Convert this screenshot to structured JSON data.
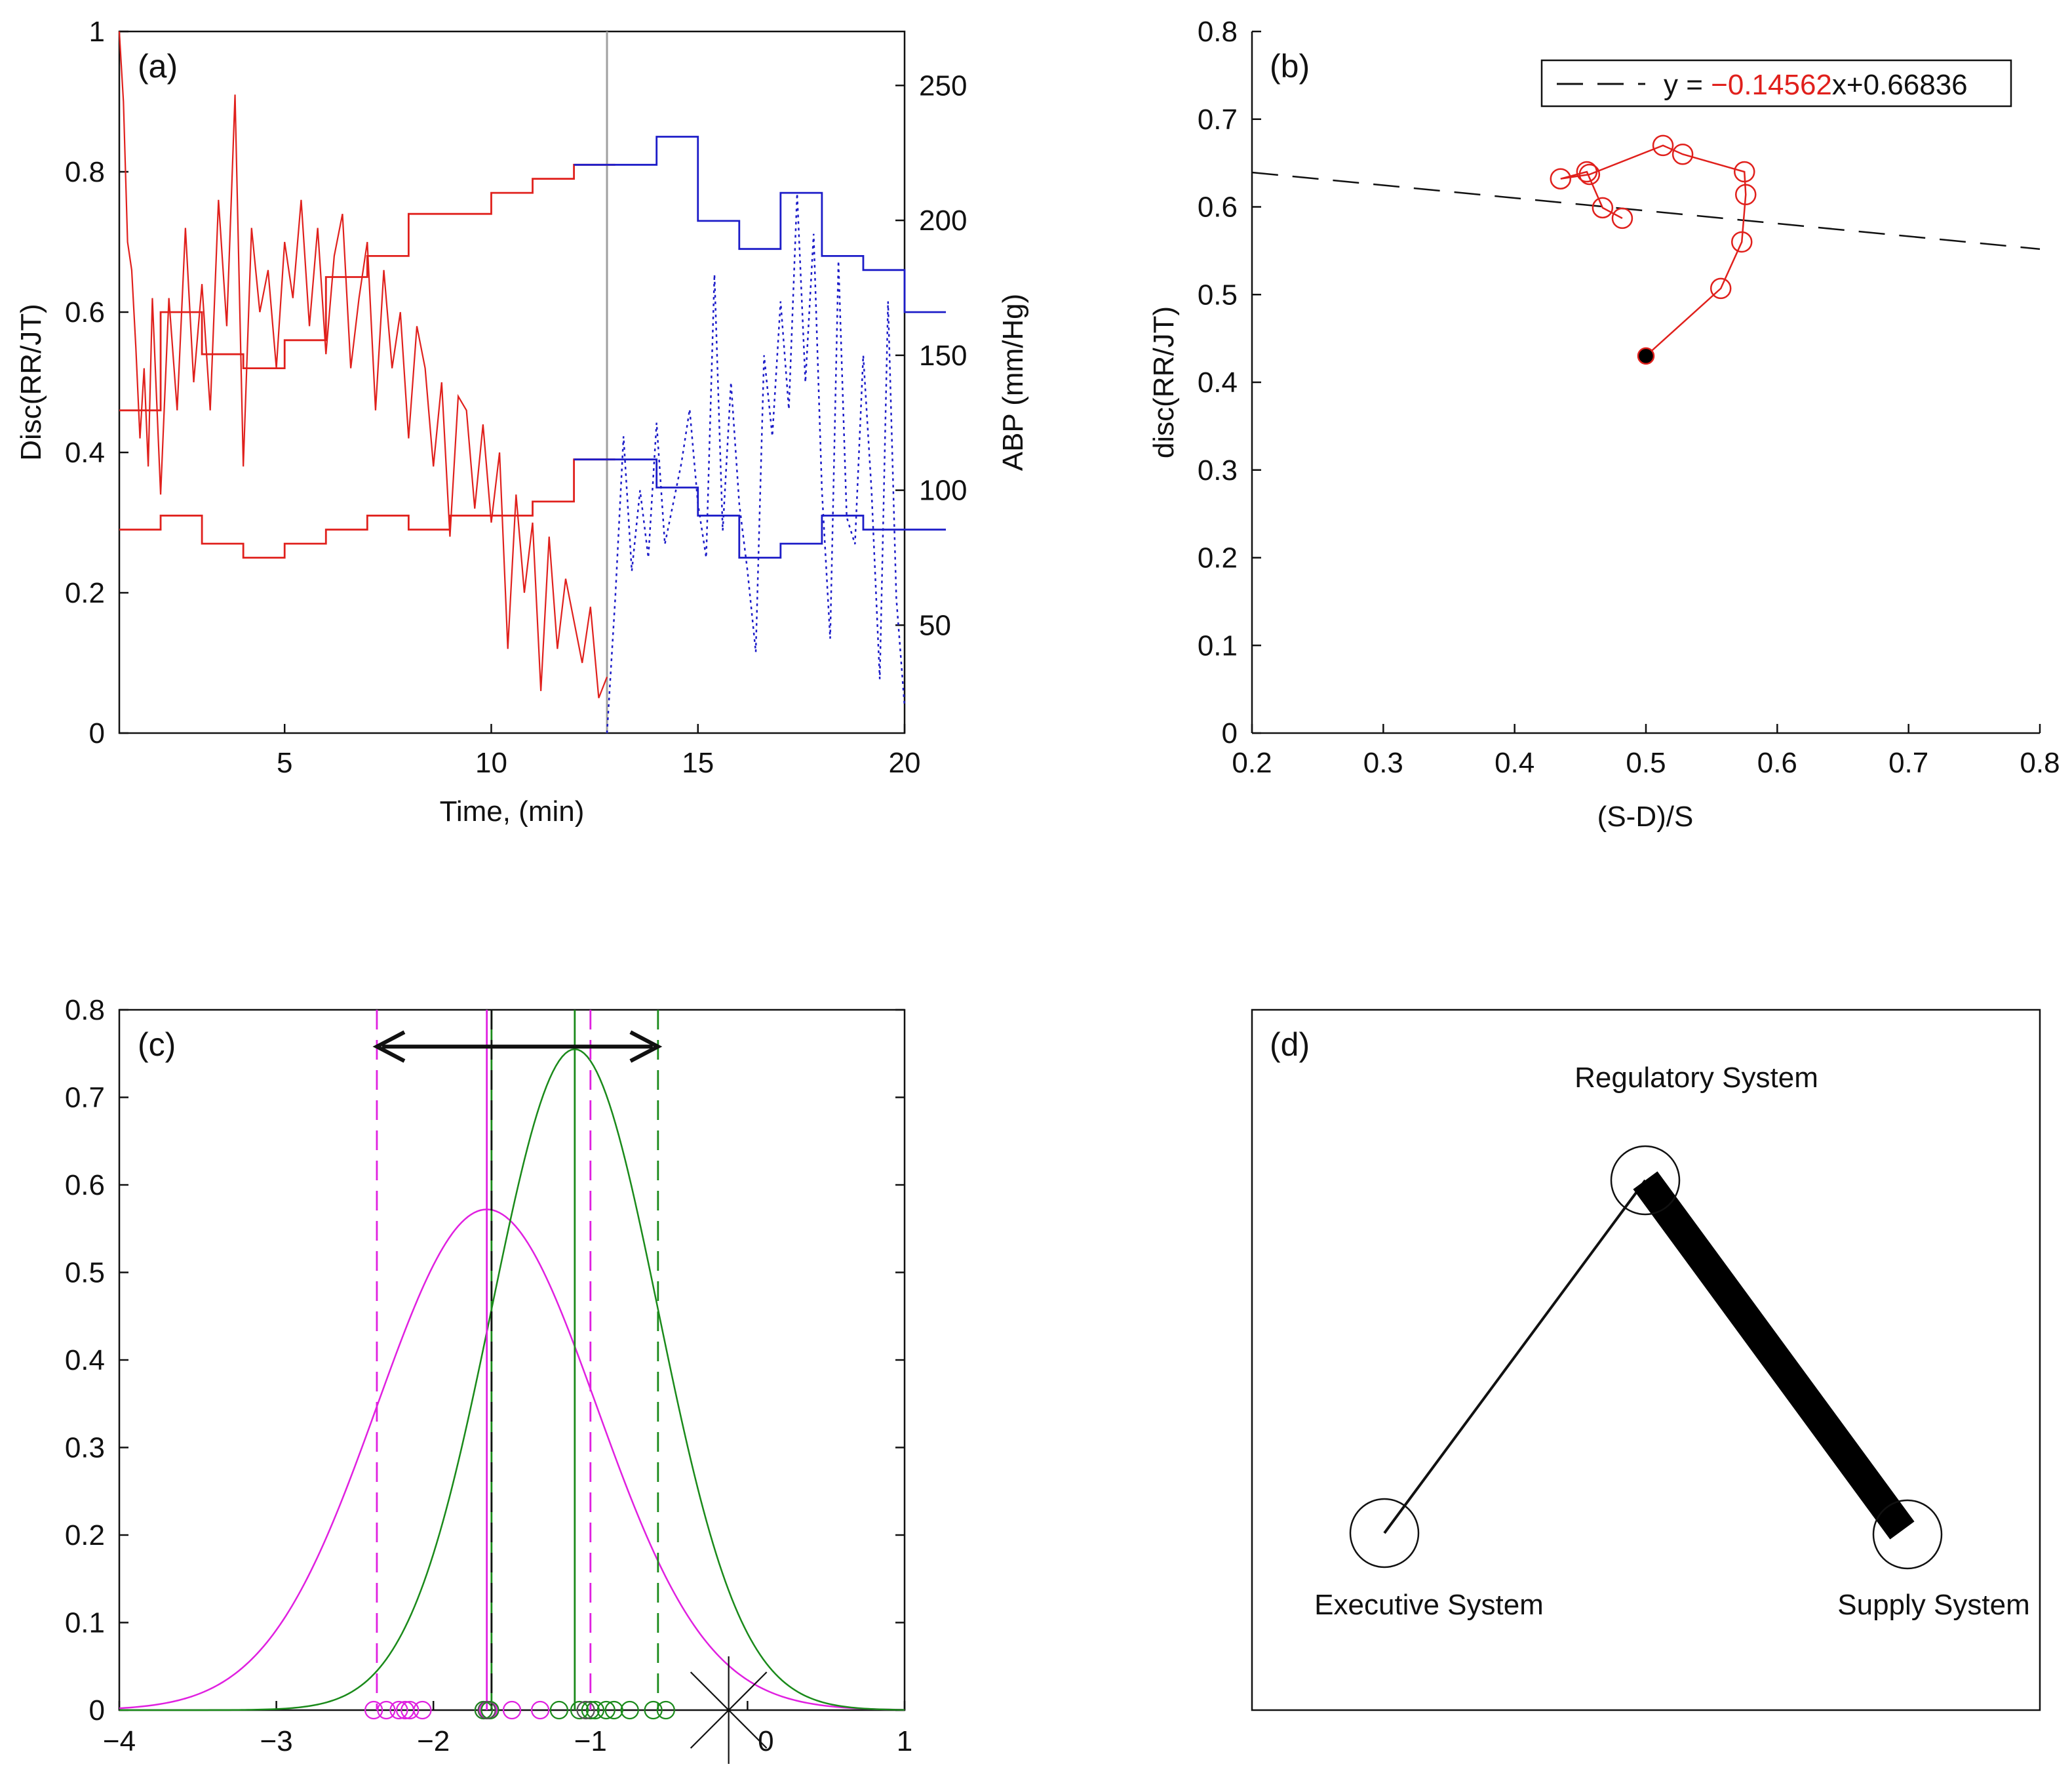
{
  "figure": {
    "description_free": true
  },
  "chart_data": [
    {
      "id": "a",
      "type": "line",
      "panel_label": "(a)",
      "xlabel": "Time, (min)",
      "ylabel": "Disc(RR/JT)",
      "ylabel_right": "ABP (mm/Hg)",
      "xlim": [
        1,
        20
      ],
      "ylim": [
        0,
        1
      ],
      "ylim_right": [
        10,
        270
      ],
      "xticks": [
        5,
        10,
        15,
        20
      ],
      "yticks": [
        0,
        0.2,
        0.4,
        0.6,
        0.8,
        1
      ],
      "yticks_right": [
        50,
        100,
        150,
        200,
        250
      ],
      "marker_line_x": 12.8,
      "colors": {
        "red": "#e0201c",
        "blue": "#1c1cc8",
        "vline": "#a0a0a0"
      },
      "series": [
        {
          "name": "RR/JT discordance (red, thin)",
          "axis": "left",
          "x": [
            1.0,
            1.1,
            1.2,
            1.3,
            1.4,
            1.5,
            1.6,
            1.7,
            1.8,
            1.9,
            2.0,
            2.2,
            2.4,
            2.6,
            2.8,
            3.0,
            3.2,
            3.4,
            3.6,
            3.8,
            4.0,
            4.2,
            4.4,
            4.6,
            4.8,
            5.0,
            5.2,
            5.4,
            5.6,
            5.8,
            6.0,
            6.2,
            6.4,
            6.6,
            6.8,
            7.0,
            7.2,
            7.4,
            7.6,
            7.8,
            8.0,
            8.2,
            8.4,
            8.6,
            8.8,
            9.0,
            9.2,
            9.4,
            9.6,
            9.8,
            10.0,
            10.2,
            10.4,
            10.6,
            10.8,
            11.0,
            11.2,
            11.4,
            11.6,
            11.8,
            12.0,
            12.2,
            12.4,
            12.6,
            12.8
          ],
          "values": [
            1.0,
            0.9,
            0.7,
            0.66,
            0.55,
            0.42,
            0.52,
            0.38,
            0.62,
            0.48,
            0.34,
            0.62,
            0.46,
            0.72,
            0.5,
            0.64,
            0.46,
            0.76,
            0.58,
            0.91,
            0.38,
            0.72,
            0.6,
            0.66,
            0.52,
            0.7,
            0.62,
            0.76,
            0.58,
            0.72,
            0.54,
            0.68,
            0.74,
            0.52,
            0.62,
            0.7,
            0.46,
            0.66,
            0.52,
            0.6,
            0.42,
            0.58,
            0.52,
            0.38,
            0.5,
            0.28,
            0.48,
            0.46,
            0.32,
            0.44,
            0.3,
            0.4,
            0.12,
            0.34,
            0.2,
            0.3,
            0.06,
            0.28,
            0.12,
            0.22,
            0.16,
            0.1,
            0.18,
            0.05,
            0.08
          ]
        },
        {
          "name": "ABP (blue, dotted)",
          "axis": "right",
          "x": [
            12.8,
            13.0,
            13.2,
            13.4,
            13.6,
            13.8,
            14.0,
            14.2,
            14.4,
            14.6,
            14.8,
            15.0,
            15.2,
            15.4,
            15.6,
            15.8,
            16.0,
            16.2,
            16.4,
            16.6,
            16.8,
            17.0,
            17.2,
            17.4,
            17.6,
            17.8,
            18.0,
            18.2,
            18.4,
            18.6,
            18.8,
            19.0,
            19.2,
            19.4,
            19.6,
            19.8,
            20.0
          ],
          "values": [
            10,
            60,
            120,
            70,
            100,
            75,
            125,
            80,
            95,
            110,
            130,
            95,
            75,
            180,
            85,
            140,
            95,
            70,
            40,
            150,
            120,
            170,
            130,
            210,
            140,
            195,
            100,
            45,
            185,
            90,
            80,
            150,
            100,
            30,
            170,
            60,
            20
          ]
        },
        {
          "name": "Mean step (red, upper)",
          "axis": "left",
          "x": [
            1,
            2,
            3,
            4,
            5,
            6,
            7,
            8,
            9,
            10,
            11,
            12
          ],
          "values": [
            0.46,
            0.6,
            0.54,
            0.52,
            0.56,
            0.65,
            0.68,
            0.74,
            0.74,
            0.77,
            0.79,
            0.81
          ]
        },
        {
          "name": "Mean step (blue, upper)",
          "axis": "left",
          "x": [
            12,
            13,
            14,
            15,
            16,
            17,
            18,
            19,
            20
          ],
          "values": [
            0.81,
            0.81,
            0.85,
            0.73,
            0.69,
            0.77,
            0.68,
            0.66,
            0.6
          ]
        },
        {
          "name": "Lower step (red)",
          "axis": "left",
          "x": [
            1,
            2,
            3,
            4,
            5,
            6,
            7,
            8,
            9,
            10,
            11,
            12
          ],
          "values": [
            0.29,
            0.31,
            0.27,
            0.25,
            0.27,
            0.29,
            0.31,
            0.29,
            0.31,
            0.31,
            0.33,
            0.39
          ]
        },
        {
          "name": "Lower step (blue)",
          "axis": "left",
          "x": [
            12,
            13,
            14,
            15,
            16,
            17,
            18,
            19,
            20
          ],
          "values": [
            0.39,
            0.39,
            0.35,
            0.31,
            0.25,
            0.27,
            0.31,
            0.29,
            0.29
          ]
        }
      ]
    },
    {
      "id": "b",
      "type": "scatter",
      "panel_label": "(b)",
      "xlabel": "(S-D)/S",
      "ylabel": "disc(RR/JT)",
      "xlim": [
        0.2,
        0.8
      ],
      "ylim": [
        0,
        0.8
      ],
      "xticks": [
        0.2,
        0.3,
        0.4,
        0.5,
        0.6,
        0.7,
        0.8
      ],
      "yticks": [
        0,
        0.1,
        0.2,
        0.3,
        0.4,
        0.5,
        0.6,
        0.7,
        0.8
      ],
      "legend": {
        "prefix": "y = ",
        "slope": "−0.14562",
        "suffix": "x+0.66836",
        "placement": "top-right"
      },
      "fit_line": {
        "slope": -0.14562,
        "intercept": 0.66836
      },
      "series": [
        {
          "name": "trajectory",
          "x": [
            0.5,
            0.557,
            0.573,
            0.576,
            0.575,
            0.528,
            0.513,
            0.457,
            0.435,
            0.455,
            0.467,
            0.482
          ],
          "y": [
            0.43,
            0.507,
            0.56,
            0.614,
            0.64,
            0.66,
            0.67,
            0.637,
            0.632,
            0.64,
            0.599,
            0.587
          ],
          "start_index": 0
        }
      ],
      "colors": {
        "trajectory": "#e0201c",
        "fit": "#111111"
      }
    },
    {
      "id": "c",
      "type": "line",
      "panel_label": "(c)",
      "xlim": [
        -4,
        1
      ],
      "ylim": [
        0,
        0.8
      ],
      "xticks": [
        -4,
        -3,
        -2,
        -1,
        0,
        1
      ],
      "yticks": [
        0,
        0.1,
        0.2,
        0.3,
        0.4,
        0.5,
        0.6,
        0.7,
        0.8
      ],
      "series": [
        {
          "name": "magenta gaussian",
          "mu": -1.66,
          "sigma": 0.7,
          "peak": 0.572,
          "color": "#e020e0"
        },
        {
          "name": "green gaussian",
          "mu": -1.1,
          "sigma": 0.53,
          "peak": 0.755,
          "color": "#1a8a1a"
        }
      ],
      "vlines": [
        {
          "x": -2.36,
          "style": "dashed",
          "color": "#e020e0"
        },
        {
          "x": -1.66,
          "style": "solid",
          "color": "#e020e0"
        },
        {
          "x": -1.0,
          "style": "dashed",
          "color": "#e020e0"
        },
        {
          "x": -1.63,
          "style": "solid",
          "color": "#1a8a1a"
        },
        {
          "x": -1.63,
          "style": "dashed",
          "color": "#111111"
        },
        {
          "x": -1.1,
          "style": "solid",
          "color": "#1a8a1a"
        },
        {
          "x": -0.57,
          "style": "dashed",
          "color": "#1a8a1a"
        }
      ],
      "arrow": {
        "from": -2.36,
        "to": -0.57,
        "y": 0.755
      },
      "points_magenta": [
        -2.38,
        -2.3,
        -2.22,
        -2.18,
        -2.15,
        -2.07,
        -1.68,
        -1.65,
        -1.5,
        -1.32
      ],
      "points_green": [
        -1.68,
        -1.64,
        -1.2,
        -1.07,
        -1.0,
        -0.97,
        -0.9,
        -0.85,
        -0.75,
        -0.6,
        -0.52
      ],
      "points_gray": [
        -1.66,
        -1.03
      ],
      "x_marker": -0.12
    },
    {
      "id": "d",
      "type": "diagram",
      "panel_label": "(d)",
      "nodes": [
        {
          "key": "regulatory",
          "label": "Regulatory System"
        },
        {
          "key": "executive",
          "label": "Executive System"
        },
        {
          "key": "supply",
          "label": "Supply System"
        }
      ],
      "edges": [
        {
          "from": "executive",
          "to": "regulatory",
          "weight": "thin"
        },
        {
          "from": "regulatory",
          "to": "supply",
          "weight": "thick"
        }
      ]
    }
  ]
}
